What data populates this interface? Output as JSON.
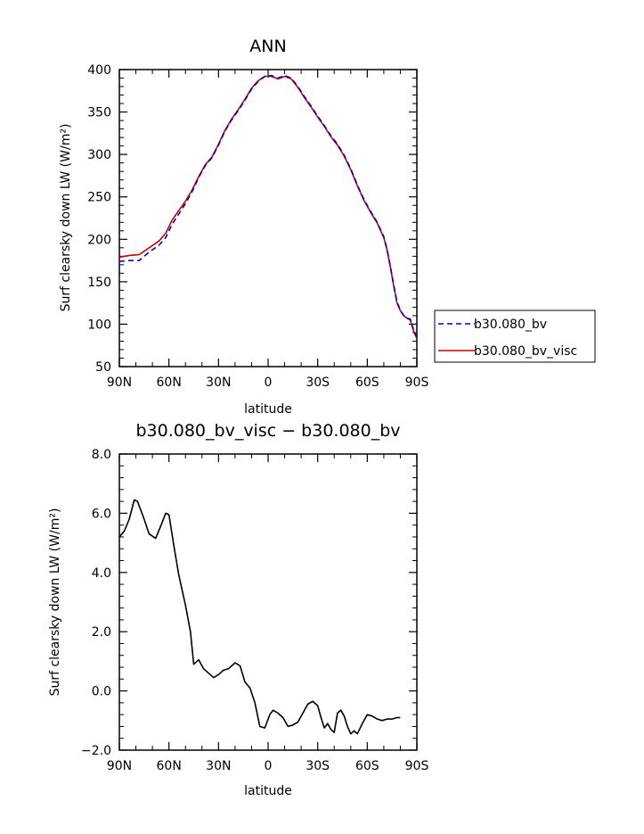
{
  "chart_data": [
    {
      "type": "line",
      "title": "ANN",
      "xlabel": "latitude",
      "ylabel": "Surf clearsky down LW (W/m²)",
      "xlim": [
        90,
        -90
      ],
      "ylim": [
        50,
        400
      ],
      "x_ticks": [
        90,
        60,
        30,
        0,
        -30,
        -60,
        -90
      ],
      "x_tick_labels": [
        "90N",
        "60N",
        "30N",
        "0",
        "30S",
        "60S",
        "90S"
      ],
      "y_ticks": [
        50,
        100,
        150,
        200,
        250,
        300,
        350,
        400
      ],
      "y_tick_labels": [
        "50",
        "100",
        "150",
        "200",
        "250",
        "300",
        "350",
        "400"
      ],
      "legend": "right",
      "grid": false,
      "series": [
        {
          "name": "b30.080_bv",
          "color": "#0000cc",
          "dash": "dashed",
          "points": [
            [
              90,
              174
            ],
            [
              84,
              175
            ],
            [
              78,
              175
            ],
            [
              72,
              185
            ],
            [
              66,
              193
            ],
            [
              62,
              202
            ],
            [
              58,
              218
            ],
            [
              54,
              230
            ],
            [
              50,
              242
            ],
            [
              46,
              256
            ],
            [
              42,
              273
            ],
            [
              38,
              287
            ],
            [
              34,
              296
            ],
            [
              30,
              311
            ],
            [
              26,
              328
            ],
            [
              22,
              341
            ],
            [
              18,
              352
            ],
            [
              14,
              364
            ],
            [
              10,
              377
            ],
            [
              6,
              386
            ],
            [
              2,
              392
            ],
            [
              -2,
              393
            ],
            [
              -6,
              390
            ],
            [
              -10,
              393
            ],
            [
              -14,
              390
            ],
            [
              -18,
              380
            ],
            [
              -22,
              368
            ],
            [
              -26,
              357
            ],
            [
              -30,
              345
            ],
            [
              -34,
              334
            ],
            [
              -38,
              322
            ],
            [
              -42,
              312
            ],
            [
              -46,
              299
            ],
            [
              -50,
              283
            ],
            [
              -54,
              264
            ],
            [
              -58,
              247
            ],
            [
              -62,
              233
            ],
            [
              -66,
              220
            ],
            [
              -70,
              203
            ],
            [
              -72,
              188
            ],
            [
              -74,
              168
            ],
            [
              -76,
              146
            ],
            [
              -78,
              126
            ],
            [
              -80,
              117
            ],
            [
              -82,
              110
            ],
            [
              -84,
              107
            ],
            [
              -86,
              106
            ],
            [
              -88,
              93
            ],
            [
              -90,
              84
            ]
          ]
        },
        {
          "name": "b30.080_bv_visc",
          "color": "#cc0000",
          "dash": "solid",
          "points": [
            [
              90,
              179
            ],
            [
              84,
              181
            ],
            [
              78,
              182
            ],
            [
              72,
              190
            ],
            [
              66,
              198
            ],
            [
              62,
              207
            ],
            [
              58,
              223
            ],
            [
              54,
              234
            ],
            [
              50,
              245
            ],
            [
              46,
              258
            ],
            [
              42,
              274
            ],
            [
              38,
              288
            ],
            [
              34,
              297
            ],
            [
              30,
              312
            ],
            [
              26,
              329
            ],
            [
              22,
              342
            ],
            [
              18,
              353
            ],
            [
              14,
              365
            ],
            [
              10,
              378
            ],
            [
              6,
              387
            ],
            [
              2,
              392
            ],
            [
              -2,
              392
            ],
            [
              -6,
              389
            ],
            [
              -10,
              392
            ],
            [
              -14,
              389
            ],
            [
              -18,
              379
            ],
            [
              -22,
              367
            ],
            [
              -26,
              356
            ],
            [
              -30,
              344
            ],
            [
              -34,
              333
            ],
            [
              -38,
              321
            ],
            [
              -42,
              311
            ],
            [
              -46,
              298
            ],
            [
              -50,
              282
            ],
            [
              -54,
              263
            ],
            [
              -58,
              246
            ],
            [
              -62,
              232
            ],
            [
              -66,
              219
            ],
            [
              -70,
              202
            ],
            [
              -72,
              187
            ],
            [
              -74,
              167
            ],
            [
              -76,
              145
            ],
            [
              -78,
              125
            ],
            [
              -80,
              116
            ],
            [
              -82,
              110
            ],
            [
              -84,
              107
            ],
            [
              -86,
              105
            ],
            [
              -88,
              92
            ],
            [
              -90,
              83
            ]
          ]
        }
      ]
    },
    {
      "type": "line",
      "title": "b30.080_bv_visc − b30.080_bv",
      "xlabel": "latitude",
      "ylabel": "Surf clearsky down LW (W/m²)",
      "xlim": [
        90,
        -90
      ],
      "ylim": [
        -2,
        8
      ],
      "x_ticks": [
        90,
        60,
        30,
        0,
        -30,
        -60,
        -90
      ],
      "x_tick_labels": [
        "90N",
        "60N",
        "30N",
        "0",
        "30S",
        "60S",
        "90S"
      ],
      "y_ticks": [
        -2,
        0,
        2,
        4,
        6,
        8
      ],
      "y_tick_labels": [
        "−2.0",
        "0.0",
        "2.0",
        "4.0",
        "6.0",
        "8.0"
      ],
      "grid": false,
      "series": [
        {
          "color": "#000000",
          "dash": "solid",
          "points": [
            [
              90,
              5.2
            ],
            [
              87,
              5.4
            ],
            [
              84,
              5.8
            ],
            [
              81,
              6.45
            ],
            [
              79,
              6.4
            ],
            [
              75,
              5.8
            ],
            [
              72,
              5.3
            ],
            [
              68,
              5.15
            ],
            [
              64,
              5.7
            ],
            [
              62,
              6.0
            ],
            [
              60,
              5.95
            ],
            [
              57,
              4.9
            ],
            [
              54,
              3.9
            ],
            [
              50,
              2.9
            ],
            [
              47,
              2.0
            ],
            [
              45,
              0.9
            ],
            [
              42,
              1.05
            ],
            [
              39,
              0.75
            ],
            [
              36,
              0.6
            ],
            [
              33,
              0.45
            ],
            [
              30,
              0.55
            ],
            [
              27,
              0.7
            ],
            [
              24,
              0.75
            ],
            [
              20,
              0.95
            ],
            [
              17,
              0.85
            ],
            [
              14,
              0.3
            ],
            [
              11,
              0.1
            ],
            [
              8,
              -0.4
            ],
            [
              5,
              -1.2
            ],
            [
              2,
              -1.25
            ],
            [
              -1,
              -0.8
            ],
            [
              -3,
              -0.65
            ],
            [
              -6,
              -0.75
            ],
            [
              -9,
              -0.9
            ],
            [
              -12,
              -1.2
            ],
            [
              -15,
              -1.15
            ],
            [
              -18,
              -1.05
            ],
            [
              -21,
              -0.75
            ],
            [
              -24,
              -0.45
            ],
            [
              -27,
              -0.35
            ],
            [
              -30,
              -0.5
            ],
            [
              -32,
              -0.9
            ],
            [
              -34,
              -1.25
            ],
            [
              -36,
              -1.1
            ],
            [
              -38,
              -1.3
            ],
            [
              -40,
              -1.4
            ],
            [
              -42,
              -0.75
            ],
            [
              -44,
              -0.65
            ],
            [
              -46,
              -0.85
            ],
            [
              -48,
              -1.2
            ],
            [
              -50,
              -1.45
            ],
            [
              -52,
              -1.35
            ],
            [
              -54,
              -1.45
            ],
            [
              -57,
              -1.1
            ],
            [
              -60,
              -0.8
            ],
            [
              -63,
              -0.85
            ],
            [
              -66,
              -0.95
            ],
            [
              -69,
              -1.0
            ],
            [
              -72,
              -0.95
            ],
            [
              -75,
              -0.95
            ],
            [
              -78,
              -0.9
            ],
            [
              -80,
              -0.9
            ]
          ]
        }
      ]
    }
  ]
}
